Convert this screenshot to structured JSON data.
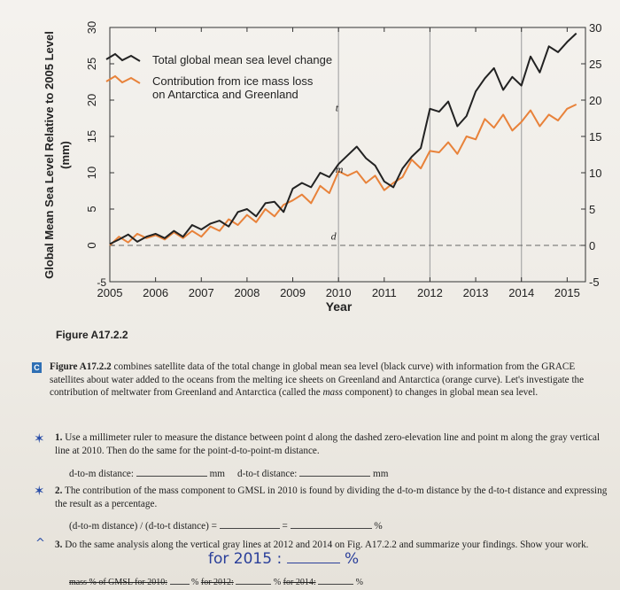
{
  "figure": {
    "label": "Figure A17.2.2",
    "chart_data": {
      "type": "line",
      "ylabel": "Global Mean Sea Level Relative to 2005 Level (mm)",
      "xlabel": "Year",
      "x_ticks": [
        "2005",
        "2006",
        "2007",
        "2008",
        "2009",
        "2010",
        "2011",
        "2012",
        "2013",
        "2014",
        "2015"
      ],
      "y_ticks": [
        "-5",
        "0",
        "5",
        "10",
        "15",
        "20",
        "25",
        "30"
      ],
      "right_y_ticks": [
        "-5",
        "0",
        "5",
        "10",
        "15",
        "20",
        "25",
        "30"
      ],
      "xlim": [
        2005,
        2015.4
      ],
      "ylim": [
        -5,
        30
      ],
      "legend": [
        {
          "label": "Total global mean sea level change",
          "color": "#222222"
        },
        {
          "label": "Contribution from ice mass loss on Antarctica and Greenland",
          "color": "#e8823a"
        }
      ],
      "point_labels": [
        "t",
        "m",
        "d"
      ],
      "gray_vertical_lines": [
        2010,
        2012,
        2014
      ],
      "dashed_zero_line": true,
      "series": [
        {
          "name": "Total global mean sea level change",
          "color": "#222222",
          "x": [
            2005.0,
            2005.2,
            2005.4,
            2005.6,
            2005.8,
            2006.0,
            2006.2,
            2006.4,
            2006.6,
            2006.8,
            2007.0,
            2007.2,
            2007.4,
            2007.6,
            2007.8,
            2008.0,
            2008.2,
            2008.4,
            2008.6,
            2008.8,
            2009.0,
            2009.2,
            2009.4,
            2009.6,
            2009.8,
            2010.0,
            2010.2,
            2010.4,
            2010.6,
            2010.8,
            2011.0,
            2011.2,
            2011.4,
            2011.6,
            2011.8,
            2012.0,
            2012.2,
            2012.4,
            2012.6,
            2012.8,
            2013.0,
            2013.2,
            2013.4,
            2013.6,
            2013.8,
            2014.0,
            2014.2,
            2014.4,
            2014.6,
            2014.8,
            2015.0,
            2015.2
          ],
          "y": [
            0.2,
            0.8,
            1.5,
            0.5,
            1.2,
            1.6,
            1.0,
            2.0,
            1.2,
            2.8,
            2.2,
            3.0,
            3.4,
            2.6,
            4.6,
            5.0,
            4.0,
            5.8,
            6.0,
            4.6,
            7.8,
            8.6,
            8.0,
            10.0,
            9.4,
            11.2,
            12.4,
            13.6,
            12.0,
            11.0,
            8.8,
            8.0,
            10.6,
            12.2,
            13.4,
            18.8,
            18.4,
            19.8,
            16.4,
            17.8,
            21.2,
            23.0,
            24.4,
            21.4,
            23.2,
            22.0,
            26.0,
            23.8,
            27.4,
            26.6,
            28.0,
            29.2
          ]
        },
        {
          "name": "Contribution from ice mass loss on Antarctica and Greenland",
          "color": "#e8823a",
          "x": [
            2005.0,
            2005.2,
            2005.4,
            2005.6,
            2005.8,
            2006.0,
            2006.2,
            2006.4,
            2006.6,
            2006.8,
            2007.0,
            2007.2,
            2007.4,
            2007.6,
            2007.8,
            2008.0,
            2008.2,
            2008.4,
            2008.6,
            2008.8,
            2009.0,
            2009.2,
            2009.4,
            2009.6,
            2009.8,
            2010.0,
            2010.2,
            2010.4,
            2010.6,
            2010.8,
            2011.0,
            2011.2,
            2011.4,
            2011.6,
            2011.8,
            2012.0,
            2012.2,
            2012.4,
            2012.6,
            2012.8,
            2013.0,
            2013.2,
            2013.4,
            2013.6,
            2013.8,
            2014.0,
            2014.2,
            2014.4,
            2014.6,
            2014.8,
            2015.0,
            2015.2
          ],
          "y": [
            0.0,
            1.2,
            0.4,
            1.6,
            1.0,
            1.4,
            0.8,
            1.8,
            1.0,
            2.0,
            1.2,
            2.6,
            2.0,
            3.6,
            2.8,
            4.2,
            3.2,
            5.0,
            4.0,
            5.6,
            6.2,
            7.0,
            5.8,
            8.2,
            7.2,
            10.2,
            9.6,
            10.2,
            8.6,
            9.6,
            7.6,
            8.6,
            9.4,
            11.8,
            10.6,
            13.0,
            12.8,
            14.2,
            12.6,
            15.0,
            14.6,
            17.4,
            16.2,
            18.0,
            15.8,
            17.0,
            18.6,
            16.4,
            18.0,
            17.2,
            18.8,
            19.4
          ]
        }
      ]
    }
  },
  "caption": {
    "box_letter": "C",
    "text_1": "Figure A17.2.2",
    "text_2": " combines satellite data of the total change in global mean sea level (black curve) with information from the GRACE satellites about water added to the oceans from the melting ice sheets on Greenland and Antarctica (orange curve). Let's investigate the contribution of meltwater from Greenland and Antarctica (called the ",
    "text_mass": "mass",
    "text_3": " component) to changes in global mean sea level."
  },
  "questions": {
    "q1": {
      "num": "1.",
      "text": "Use a millimeter ruler to measure the distance between point d along the dashed zero-elevation line and point m along the gray vertical line at 2010. Then do the same for the point-d-to-point-m distance.",
      "dm_label": "d-to-m distance:",
      "dm_unit": "mm",
      "dt_label": "d-to-t distance:",
      "dt_unit": "mm"
    },
    "q2": {
      "num": "2.",
      "text": "The contribution of the mass component to GMSL in 2010 is found by dividing the d-to-m distance by the d-to-t distance and expressing the result as a percentage.",
      "formula": "(d-to-m distance) / (d-to-t distance) =",
      "eq": "=",
      "pct": "%"
    },
    "q3": {
      "num": "3.",
      "text": "Do the same analysis along the vertical gray lines at 2012 and 2014 on Fig. A17.2.2 and summarize your findings. Show your work.",
      "handwriting": "for 2015 :",
      "hand_pct": "%",
      "line_2010": "mass % of GMSL for 2010:",
      "pct_1": "%",
      "line_2012": "for 2012:",
      "pct_2": "%",
      "line_2014": "for 2014:",
      "pct_3": "%"
    }
  }
}
